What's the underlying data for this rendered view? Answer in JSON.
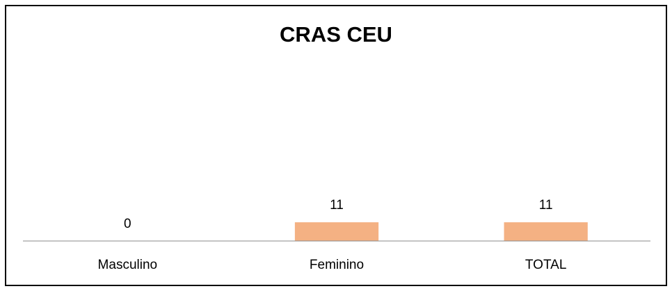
{
  "chart_data": {
    "type": "bar",
    "title": "CRAS CEU",
    "categories": [
      "Masculino",
      "Feminino",
      "TOTAL"
    ],
    "values": [
      0,
      11,
      11
    ],
    "color": "#f4b183",
    "ylim": [
      0,
      100
    ],
    "grid": false
  }
}
